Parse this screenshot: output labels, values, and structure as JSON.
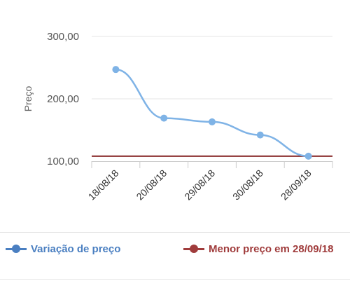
{
  "chart_data": {
    "type": "line",
    "title": "",
    "xlabel": "",
    "ylabel": "Preço",
    "ylim": [
      100,
      300
    ],
    "yticks": [
      "100,00",
      "200,00",
      "300,00"
    ],
    "categories": [
      "18/08/18",
      "20/08/18",
      "29/08/18",
      "30/08/18",
      "28/09/18"
    ],
    "series": [
      {
        "name": "Variação de preço",
        "values": [
          247,
          169,
          163,
          142,
          108
        ],
        "color": "#7fb3e6"
      }
    ],
    "reference_line": {
      "name": "Menor preço em 28/09/18",
      "value": 108,
      "color": "#8b2e2e"
    },
    "grid": true,
    "legend_position": "bottom"
  },
  "legend": {
    "series_label": "Variação de preço",
    "series_color": "#4a7fc1",
    "reference_label": "Menor preço em 28/09/18",
    "reference_color": "#a03c3c"
  }
}
